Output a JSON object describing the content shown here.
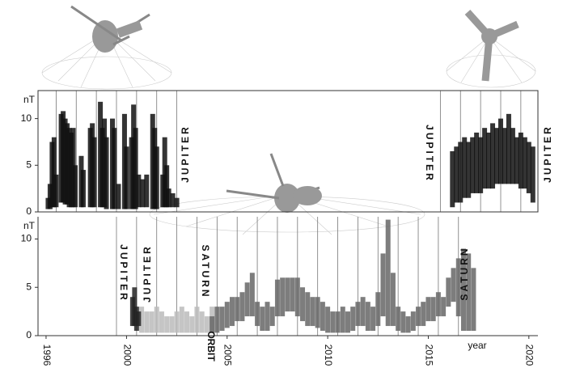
{
  "chart_data": [
    {
      "type": "range",
      "y_label": "nT",
      "xlim": [
        1995.6,
        2020.45
      ],
      "ylim": [
        0,
        13
      ],
      "yticks": [
        0,
        5,
        10
      ],
      "xgrid": [
        1996.5,
        1997.5,
        1998.5,
        1999.5,
        2000.5,
        2001.5,
        2002.5,
        2015.6,
        2016.6,
        2017.6,
        2018.6,
        2019.6
      ],
      "annotations": [
        "JUPITER",
        "JUPITER",
        "JUPITER"
      ],
      "series": [
        {
          "color": "#111",
          "x": [
            1996.1,
            1996.2,
            1996.3,
            1996.4,
            1996.5,
            1996.75,
            1996.85,
            1996.95,
            1997.05,
            1997.15,
            1997.25,
            1997.35,
            1997.45,
            1997.75,
            1997.85,
            1998.2,
            1998.3,
            1998.4,
            1998.7,
            1998.8,
            1998.9,
            1999.0,
            1999.3,
            1999.4,
            1999.6,
            1999.9,
            2000.0,
            2000.25,
            2000.35,
            2000.45,
            2000.6,
            2000.8,
            2001.0,
            2001.3,
            2001.4,
            2001.5,
            2001.8,
            2001.9,
            2002.0,
            2002.1,
            2002.3,
            2002.5,
            2016.2,
            2016.4,
            2016.6,
            2016.8,
            2017.0,
            2017.2,
            2017.4,
            2017.6,
            2017.8,
            2018.0,
            2018.2,
            2018.4,
            2018.6,
            2018.8,
            2019.0,
            2019.2,
            2019.4,
            2019.6,
            2019.8,
            2020.0,
            2020.2
          ],
          "low": [
            0.3,
            0.3,
            0.5,
            0.5,
            0.5,
            1,
            1,
            0.8,
            0.8,
            0.5,
            0.5,
            0.5,
            0.5,
            0.5,
            0.5,
            0.5,
            0.5,
            0.5,
            0.5,
            0.5,
            0.5,
            0.3,
            0.3,
            0.3,
            0.3,
            0.3,
            0.3,
            0.3,
            0.3,
            0.3,
            0.5,
            0.5,
            0.5,
            0.3,
            0.3,
            0.3,
            0.5,
            0.5,
            0.5,
            0.5,
            0.5,
            0.5,
            0.5,
            1,
            1,
            1.5,
            1.5,
            2,
            2,
            2,
            2.5,
            2.5,
            2.5,
            3,
            3,
            3,
            3,
            3,
            3,
            2.5,
            2.5,
            2,
            1
          ],
          "high": [
            1.5,
            3,
            7.5,
            8,
            4,
            10.5,
            10.8,
            10,
            9.5,
            9,
            8.5,
            9,
            5,
            6,
            4.5,
            9,
            9.5,
            8,
            11.8,
            9,
            10,
            8,
            10,
            9,
            3,
            10.5,
            7,
            8,
            11.5,
            9,
            4,
            3.5,
            4,
            10.5,
            9,
            7,
            4,
            8,
            5,
            2.5,
            2,
            1.5,
            6.5,
            7,
            7.5,
            8,
            7.5,
            8,
            8.5,
            8,
            9,
            8.5,
            9.5,
            9,
            10,
            9,
            10.5,
            9,
            8,
            8.5,
            8,
            7.5,
            7
          ]
        }
      ]
    },
    {
      "type": "range",
      "y_label": "nT",
      "x_label": "year",
      "xlim": [
        1995.6,
        2020.45
      ],
      "ylim": [
        0,
        12.3
      ],
      "yticks": [
        0,
        5,
        10
      ],
      "xticks": [
        1996,
        2000,
        2005,
        2010,
        2015,
        2020
      ],
      "xgrid": [
        1999.5,
        2000.5,
        2001.5,
        2002.5,
        2003.5,
        2004.5,
        2005.5,
        2006.5,
        2007.5,
        2008.5,
        2009.5,
        2010.5,
        2011.5,
        2012.5,
        2013.5,
        2014.5,
        2015.5,
        2016.5
      ],
      "annotations": [
        "JUPITER",
        "JUPITER",
        "SATURN",
        "ORBIT",
        "SATURN"
      ],
      "series": [
        {
          "color": "#bbbbbb",
          "x": [
            2000.75,
            2001.0,
            2001.25,
            2001.5,
            2001.75,
            2002.0,
            2002.25,
            2002.5,
            2002.75,
            2003.0,
            2003.25,
            2003.5,
            2003.75,
            2004.0,
            2004.25
          ],
          "low": [
            0.3,
            0.3,
            0.3,
            0.3,
            0.3,
            0.3,
            0.3,
            0.3,
            0.3,
            0.3,
            0.3,
            0.3,
            0.3,
            0.3,
            0.3
          ],
          "high": [
            3,
            2.5,
            2.5,
            3,
            2.5,
            2,
            2,
            2.5,
            3,
            2.5,
            2,
            3,
            2.5,
            2,
            3
          ]
        },
        {
          "color": "#222222",
          "x": [
            2000.3,
            2000.4,
            2000.5,
            2000.6
          ],
          "low": [
            1,
            1,
            0.5,
            1
          ],
          "high": [
            4,
            5,
            3,
            2.5
          ]
        },
        {
          "color": "#666666",
          "x": [
            2004.25,
            2004.5,
            2004.75,
            2005.0,
            2005.25,
            2005.5,
            2005.75,
            2006.0,
            2006.25,
            2006.5,
            2006.75,
            2007.0,
            2007.25,
            2007.5,
            2007.75,
            2008.0,
            2008.25,
            2008.5,
            2008.75,
            2009.0,
            2009.25,
            2009.5,
            2009.75,
            2010.0,
            2010.25,
            2010.5,
            2010.75,
            2011.0,
            2011.25,
            2011.5,
            2011.75,
            2012.0,
            2012.25,
            2012.5,
            2012.75,
            2013.0,
            2013.25,
            2013.5,
            2013.75,
            2014.0,
            2014.25,
            2014.5,
            2014.75,
            2015.0,
            2015.25,
            2015.5,
            2015.75,
            2016.0,
            2016.25,
            2016.5,
            2016.75,
            2017.0,
            2017.25
          ],
          "low": [
            0.3,
            0.3,
            0.5,
            0.8,
            1,
            1.5,
            1.5,
            2,
            2,
            1,
            0.5,
            0.5,
            1,
            2,
            2,
            2.5,
            2.5,
            2,
            1.5,
            1,
            1,
            0.8,
            0.5,
            0.3,
            0.3,
            0.3,
            0.3,
            0.3,
            0.5,
            1,
            1,
            0.5,
            0.5,
            1,
            2,
            1,
            1,
            0.5,
            0.3,
            0.3,
            0.5,
            1,
            1,
            1.5,
            1.5,
            2,
            2,
            3,
            3.5,
            2,
            0.5,
            0.5,
            0.5
          ],
          "high": [
            2,
            3,
            3,
            3.5,
            4,
            4,
            4.5,
            5.5,
            6.5,
            3.5,
            3,
            3.5,
            3,
            5.8,
            6,
            6,
            6,
            6,
            5,
            4.5,
            4,
            4,
            3.5,
            3,
            2.5,
            2.5,
            3,
            2.5,
            3,
            3.5,
            4,
            3.5,
            3,
            4.5,
            8.5,
            12,
            6.5,
            3,
            2.5,
            2,
            2.5,
            3,
            3.5,
            4,
            4,
            4.5,
            4,
            6,
            7,
            8,
            9,
            8.5,
            7
          ]
        }
      ]
    }
  ]
}
